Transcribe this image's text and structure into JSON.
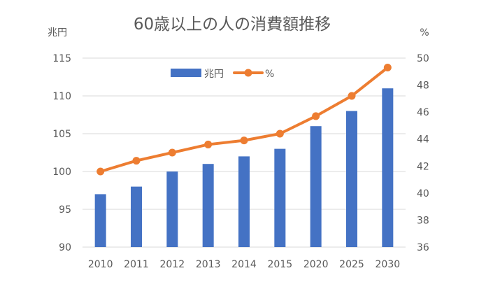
{
  "chart_data": {
    "type": "bar+line",
    "title": "60歳以上の人の消費額推移",
    "categories": [
      "2010",
      "2011",
      "2012",
      "2013",
      "2014",
      "2015",
      "2020",
      "2025",
      "2030"
    ],
    "series": [
      {
        "name": "兆円",
        "type": "bar",
        "axis": "left",
        "color": "#4472C4",
        "values": [
          97,
          98,
          100,
          101,
          102,
          103,
          106,
          108,
          111
        ]
      },
      {
        "name": "%",
        "type": "line",
        "axis": "right",
        "color": "#ED7D31",
        "values": [
          41.6,
          42.4,
          43.0,
          43.6,
          43.9,
          44.4,
          45.7,
          47.2,
          49.3
        ]
      }
    ],
    "y_left": {
      "label": "兆円",
      "ylim": [
        90,
        115
      ],
      "ticks": [
        90,
        95,
        100,
        105,
        110,
        115
      ]
    },
    "y_right": {
      "label": "%",
      "ylim": [
        36,
        50
      ],
      "ticks": [
        36,
        38,
        40,
        42,
        44,
        46,
        48,
        50
      ]
    },
    "grid": true,
    "legend_position": "top-center"
  }
}
